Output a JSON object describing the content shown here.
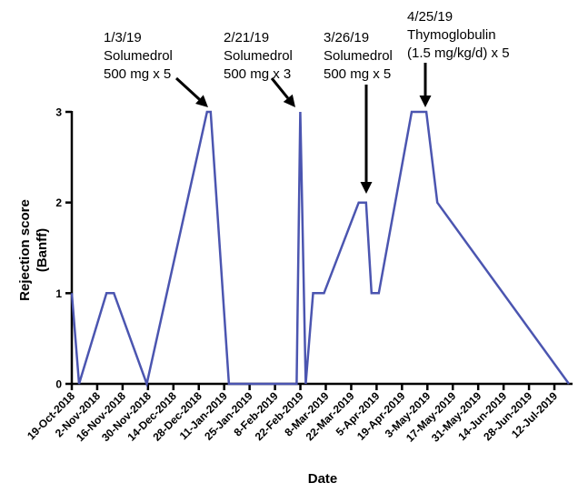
{
  "chart_data": {
    "type": "line",
    "title": "",
    "xlabel": "Date",
    "ylabel_lines": [
      "Rejection score",
      "(Banff)"
    ],
    "ylim": [
      0,
      3
    ],
    "yticks": [
      "0",
      "1",
      "2",
      "3"
    ],
    "xticks": [
      "19-Oct-2018",
      "2-Nov-2018",
      "16-Nov-2018",
      "30-Nov-2018",
      "14-Dec-2018",
      "28-Dec-2018",
      "11-Jan-2019",
      "25-Jan-2019",
      "8-Feb-2019",
      "22-Feb-2019",
      "8-Mar-2019",
      "22-Mar-2019",
      "5-Apr-2019",
      "19-Apr-2019",
      "3-May-2019",
      "17-May-2019",
      "31-May-2019",
      "14-Jun-2019",
      "28-Jun-2019",
      "12-Jul-2019"
    ],
    "x_range": [
      "2018-10-19",
      "2019-07-19"
    ],
    "line_color": "#4B55B0",
    "series": [
      {
        "points": [
          {
            "x": "2018-10-19",
            "y": 1
          },
          {
            "x": "2018-10-23",
            "y": 0
          },
          {
            "x": "2018-11-07",
            "y": 1
          },
          {
            "x": "2018-11-11",
            "y": 1
          },
          {
            "x": "2018-11-29",
            "y": 0
          },
          {
            "x": "2019-01-01",
            "y": 3
          },
          {
            "x": "2019-01-03",
            "y": 3
          },
          {
            "x": "2019-01-13",
            "y": 0
          },
          {
            "x": "2019-02-19",
            "y": 0
          },
          {
            "x": "2019-02-21",
            "y": 3
          },
          {
            "x": "2019-02-24",
            "y": 0
          },
          {
            "x": "2019-02-28",
            "y": 1
          },
          {
            "x": "2019-03-06",
            "y": 1
          },
          {
            "x": "2019-03-25",
            "y": 2
          },
          {
            "x": "2019-03-29",
            "y": 2
          },
          {
            "x": "2019-04-01",
            "y": 1
          },
          {
            "x": "2019-04-05",
            "y": 1
          },
          {
            "x": "2019-04-23",
            "y": 3
          },
          {
            "x": "2019-05-01",
            "y": 3
          },
          {
            "x": "2019-05-07",
            "y": 2
          },
          {
            "x": "2019-07-18",
            "y": 0
          }
        ]
      }
    ],
    "annotations": [
      {
        "lines": [
          "1/3/19",
          "Solumedrol",
          "500 mg x 5"
        ],
        "target": {
          "x": "2019-01-02",
          "y": 3
        }
      },
      {
        "lines": [
          "2/21/19",
          "Solumedrol",
          "500 mg x 3"
        ],
        "target": {
          "x": "2019-02-21",
          "y": 3
        }
      },
      {
        "lines": [
          "3/26/19",
          "Solumedrol",
          "500 mg x 5"
        ],
        "target": {
          "x": "2019-03-27",
          "y": 2
        }
      },
      {
        "lines": [
          "4/25/19",
          "Thymoglobulin",
          "(1.5 mg/kg/d) x 5"
        ],
        "target": {
          "x": "2019-04-27",
          "y": 3
        }
      }
    ],
    "grid": false
  }
}
